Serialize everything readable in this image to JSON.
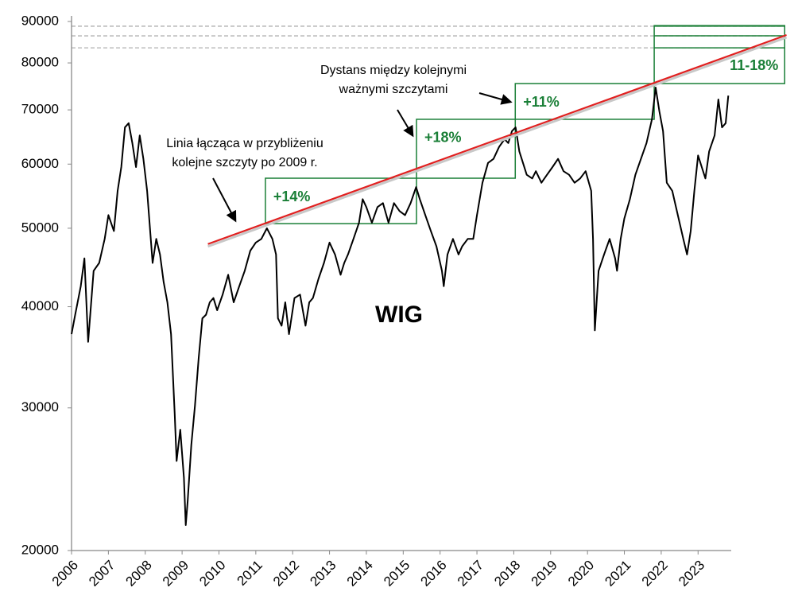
{
  "chart_data": {
    "type": "line",
    "log_y": true,
    "xlim": [
      2006,
      2023.9
    ],
    "xticks": [
      2006,
      2007,
      2008,
      2009,
      2010,
      2011,
      2012,
      2013,
      2014,
      2015,
      2016,
      2017,
      2018,
      2019,
      2020,
      2021,
      2022,
      2023
    ],
    "ylim": [
      20000,
      90000
    ],
    "yticks": [
      20000,
      30000,
      40000,
      50000,
      60000,
      70000,
      80000,
      90000
    ],
    "series": [
      {
        "name": "WIG",
        "color": "#000000",
        "x": [
          2006.0,
          2006.1,
          2006.25,
          2006.35,
          2006.45,
          2006.6,
          2006.75,
          2006.9,
          2007.0,
          2007.15,
          2007.25,
          2007.35,
          2007.45,
          2007.55,
          2007.65,
          2007.75,
          2007.85,
          2007.95,
          2008.05,
          2008.15,
          2008.2,
          2008.3,
          2008.4,
          2008.5,
          2008.6,
          2008.7,
          2008.8,
          2008.85,
          2008.95,
          2009.05,
          2009.1,
          2009.15,
          2009.25,
          2009.35,
          2009.45,
          2009.55,
          2009.65,
          2009.75,
          2009.85,
          2009.95,
          2010.1,
          2010.25,
          2010.4,
          2010.55,
          2010.7,
          2010.85,
          2011.0,
          2011.15,
          2011.3,
          2011.45,
          2011.55,
          2011.6,
          2011.7,
          2011.8,
          2011.9,
          2012.05,
          2012.2,
          2012.35,
          2012.45,
          2012.55,
          2012.7,
          2012.85,
          2013.0,
          2013.15,
          2013.3,
          2013.4,
          2013.5,
          2013.65,
          2013.8,
          2013.9,
          2014.0,
          2014.15,
          2014.3,
          2014.45,
          2014.6,
          2014.75,
          2014.9,
          2015.05,
          2015.2,
          2015.35,
          2015.45,
          2015.6,
          2015.75,
          2015.9,
          2016.05,
          2016.1,
          2016.2,
          2016.35,
          2016.5,
          2016.6,
          2016.75,
          2016.9,
          2017.0,
          2017.15,
          2017.3,
          2017.45,
          2017.6,
          2017.75,
          2017.85,
          2017.95,
          2018.05,
          2018.15,
          2018.25,
          2018.35,
          2018.5,
          2018.6,
          2018.75,
          2018.9,
          2019.05,
          2019.2,
          2019.35,
          2019.5,
          2019.65,
          2019.8,
          2019.95,
          2020.1,
          2020.15,
          2020.2,
          2020.3,
          2020.45,
          2020.6,
          2020.75,
          2020.8,
          2020.9,
          2021.0,
          2021.15,
          2021.3,
          2021.45,
          2021.6,
          2021.75,
          2021.85,
          2021.95,
          2022.05,
          2022.15,
          2022.3,
          2022.45,
          2022.6,
          2022.7,
          2022.8,
          2022.9,
          2023.0,
          2023.1,
          2023.2,
          2023.3,
          2023.45,
          2023.55,
          2023.65,
          2023.75,
          2023.82
        ],
        "values": [
          37000,
          39100,
          42400,
          45900,
          36200,
          44300,
          45300,
          48500,
          51900,
          49600,
          55600,
          59500,
          66600,
          67400,
          63700,
          59500,
          65100,
          60900,
          55600,
          48500,
          45300,
          48500,
          46400,
          42900,
          40500,
          37000,
          29500,
          25800,
          28200,
          24600,
          21500,
          23000,
          27000,
          30200,
          34600,
          38700,
          39100,
          40500,
          41000,
          39600,
          41400,
          43800,
          40500,
          42400,
          44300,
          46900,
          48000,
          48500,
          50000,
          48500,
          46400,
          38700,
          37900,
          40500,
          37000,
          41000,
          41400,
          37900,
          40500,
          41000,
          43300,
          45300,
          48000,
          46400,
          43800,
          45300,
          46400,
          48500,
          50800,
          54300,
          53100,
          50800,
          53100,
          53700,
          50800,
          53700,
          52500,
          51900,
          53700,
          56200,
          54300,
          51900,
          49600,
          47500,
          44300,
          42400,
          46400,
          48500,
          46400,
          47500,
          48500,
          48500,
          51900,
          56900,
          60200,
          60900,
          63000,
          64400,
          63700,
          65900,
          66600,
          62200,
          60200,
          58200,
          57600,
          58800,
          56900,
          58200,
          59500,
          60900,
          58800,
          58200,
          56900,
          57600,
          58800,
          55600,
          48500,
          37400,
          44300,
          46400,
          48500,
          45900,
          44300,
          48500,
          51400,
          54300,
          58200,
          60900,
          63700,
          68200,
          74600,
          69700,
          65900,
          56900,
          55600,
          51900,
          48500,
          46400,
          49600,
          55600,
          61500,
          59500,
          57600,
          62200,
          65100,
          72100,
          66600,
          67400,
          72900
        ]
      }
    ],
    "trend_line": {
      "color": "#e02020",
      "x": [
        2009.7,
        2025.4
      ],
      "values": [
        47800,
        86600
      ]
    },
    "reference_levels": [
      83500,
      86400,
      88800
    ],
    "box_color": "#1a7f37",
    "boxes": [
      {
        "label": "+14%",
        "x": [
          2011.26,
          2015.36
        ],
        "y": [
          50660,
          57640
        ]
      },
      {
        "label": "+18%",
        "x": [
          2015.36,
          2018.04
        ],
        "y": [
          57640,
          68150
        ]
      },
      {
        "label": "+11%",
        "x": [
          2018.04,
          2021.81
        ],
        "y": [
          68150,
          75440
        ]
      },
      {
        "label": "11-18%",
        "x": [
          2021.81,
          2025.35
        ],
        "y": [
          75440,
          88950
        ]
      }
    ],
    "annotations": [
      {
        "lines": [
          "Linia łącząca w przybliżeniu",
          "kolejne szczyty po 2009 r."
        ]
      },
      {
        "lines": [
          "Dystans między kolejnymi",
          "ważnymi szczytami"
        ]
      }
    ]
  }
}
